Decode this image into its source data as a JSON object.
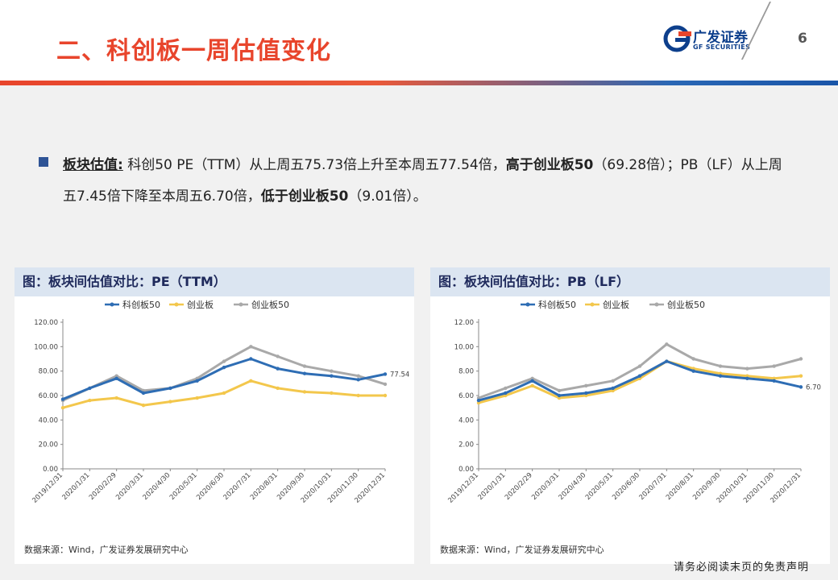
{
  "header": {
    "title": "二、科创板一周估值变化",
    "logo_cn": "广发证券",
    "logo_en": "GF SECURITIES",
    "page_number": "6"
  },
  "summary": {
    "label": "板块估值:",
    "text1": " 科创50 PE（TTM）从上周五75.73倍上升至本周五77.54倍，",
    "bold1": "高于创业板50",
    "text2": "（69.28倍）；PB（LF）从上周五7.45倍下降至本周五6.70倍，",
    "bold2": "低于创业板50",
    "text3": "（9.01倍）。"
  },
  "disclaimer": "请务必阅读末页的免责声明",
  "colors": {
    "kc50": "#2e6db4",
    "cyb": "#f3c74c",
    "cyb50": "#a9a9a9",
    "accent": "#e8452c",
    "brand": "#0d3f8c"
  },
  "chart_data": [
    {
      "type": "line",
      "title": "图：板块间估值对比：PE（TTM）",
      "source": "数据来源：Wind，广发证券发展研究中心",
      "categories": [
        "2019/12/31",
        "2020/1/31",
        "2020/2/29",
        "2020/3/31",
        "2020/4/30",
        "2020/5/31",
        "2020/6/30",
        "2020/7/31",
        "2020/8/31",
        "2020/9/30",
        "2020/10/31",
        "2020/11/30",
        "2020/12/31"
      ],
      "yticks": [
        "0.00",
        "20.00",
        "40.00",
        "60.00",
        "80.00",
        "100.00",
        "120.00"
      ],
      "ylim": [
        0,
        120
      ],
      "end_label": "77.54",
      "series": [
        {
          "name": "科创板50",
          "values": [
            57,
            66,
            74,
            62,
            66,
            72,
            83,
            90,
            82,
            78,
            76,
            73,
            77.5
          ]
        },
        {
          "name": "创业板",
          "values": [
            50,
            56,
            58,
            52,
            55,
            58,
            62,
            72,
            66,
            63,
            62,
            60,
            60
          ]
        },
        {
          "name": "创业板50",
          "values": [
            56,
            66,
            76,
            64,
            66,
            74,
            88,
            100,
            92,
            84,
            80,
            76,
            69.3
          ]
        }
      ]
    },
    {
      "type": "line",
      "title": "图：板块间估值对比：PB（LF）",
      "source": "数据来源：Wind，广发证券发展研究中心",
      "categories": [
        "2019/12/31",
        "2020/1/31",
        "2020/2/29",
        "2020/3/31",
        "2020/4/30",
        "2020/5/31",
        "2020/6/30",
        "2020/7/31",
        "2020/8/31",
        "2020/9/30",
        "2020/10/31",
        "2020/11/30",
        "2020/12/31"
      ],
      "yticks": [
        "0.00",
        "2.00",
        "4.00",
        "6.00",
        "8.00",
        "10.00",
        "12.00"
      ],
      "ylim": [
        0,
        12
      ],
      "end_label": "6.70",
      "series": [
        {
          "name": "科创板50",
          "values": [
            5.6,
            6.2,
            7.2,
            6.0,
            6.2,
            6.6,
            7.6,
            8.8,
            8.0,
            7.6,
            7.4,
            7.2,
            6.7
          ]
        },
        {
          "name": "创业板",
          "values": [
            5.4,
            6.0,
            6.8,
            5.8,
            6.0,
            6.4,
            7.4,
            8.8,
            8.2,
            7.8,
            7.6,
            7.4,
            7.6
          ]
        },
        {
          "name": "创业板50",
          "values": [
            5.8,
            6.6,
            7.4,
            6.4,
            6.8,
            7.2,
            8.4,
            10.2,
            9.0,
            8.4,
            8.2,
            8.4,
            9.0
          ]
        }
      ]
    }
  ]
}
